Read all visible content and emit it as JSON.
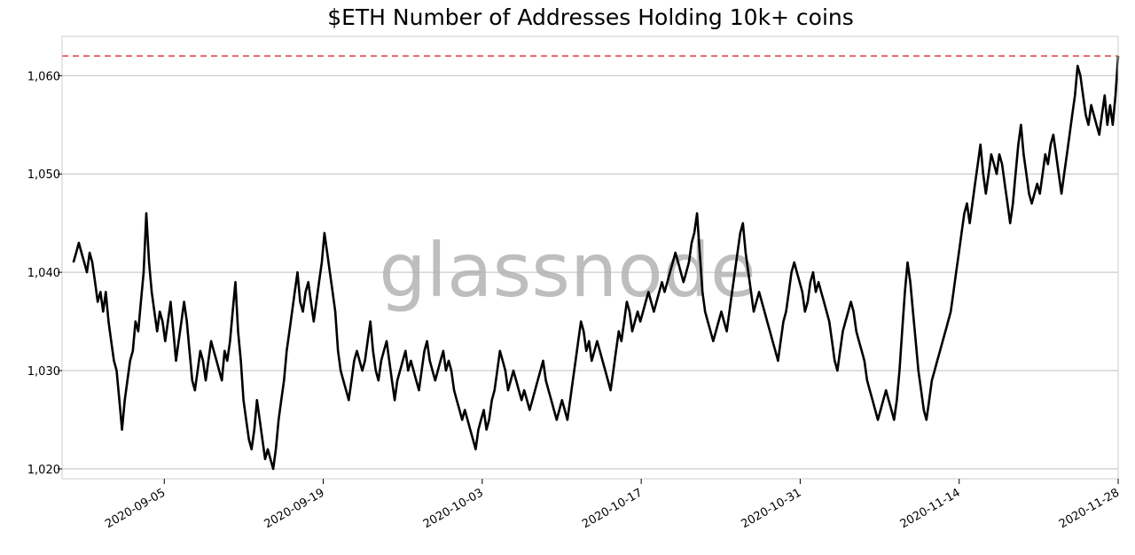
{
  "chart_data": {
    "type": "line",
    "title": "$ETH Number of Addresses Holding 10k+ coins",
    "xlabel": "",
    "ylabel": "",
    "x_start": "2020-08-28",
    "x_end": "2020-11-28",
    "xlim": [
      "2020-08-27",
      "2020-11-28"
    ],
    "ylim": [
      1019,
      1064
    ],
    "x_ticks": [
      "2020-09-05",
      "2020-09-19",
      "2020-10-03",
      "2020-10-17",
      "2020-10-31",
      "2020-11-14",
      "2020-11-28"
    ],
    "y_ticks": [
      1020,
      1030,
      1040,
      1050,
      1060
    ],
    "y_tick_labels": [
      "1,020",
      "1,030",
      "1,040",
      "1,050",
      "1,060"
    ],
    "grid": "horizontal",
    "reference_line": {
      "value": 1062,
      "color": "#e03c3c",
      "style": "dashed"
    },
    "line_color": "#000000",
    "watermark": "glassnode",
    "series": [
      {
        "values": [
          1041,
          1042,
          1043,
          1042,
          1041,
          1040,
          1042,
          1041,
          1039,
          1037,
          1038,
          1036,
          1038,
          1035,
          1033,
          1031,
          1030,
          1027,
          1024,
          1027,
          1029,
          1031,
          1032,
          1035,
          1034,
          1037,
          1040,
          1046,
          1041,
          1038,
          1036,
          1034,
          1036,
          1035,
          1033,
          1035,
          1037,
          1034,
          1031,
          1033,
          1035,
          1037,
          1035,
          1032,
          1029,
          1028,
          1030,
          1032,
          1031,
          1029,
          1031,
          1033,
          1032,
          1031,
          1030,
          1029,
          1032,
          1031,
          1033,
          1036,
          1039,
          1034,
          1031,
          1027,
          1025,
          1023,
          1022,
          1024,
          1027,
          1025,
          1023,
          1021,
          1022,
          1021,
          1020,
          1022,
          1025,
          1027,
          1029,
          1032,
          1034,
          1036,
          1038,
          1040,
          1037,
          1036,
          1038,
          1039,
          1037,
          1035,
          1037,
          1039,
          1041,
          1044,
          1042,
          1040,
          1038,
          1036,
          1032,
          1030,
          1029,
          1028,
          1027,
          1029,
          1031,
          1032,
          1031,
          1030,
          1031,
          1033,
          1035,
          1032,
          1030,
          1029,
          1031,
          1032,
          1033,
          1031,
          1029,
          1027,
          1029,
          1030,
          1031,
          1032,
          1030,
          1031,
          1030,
          1029,
          1028,
          1030,
          1032,
          1033,
          1031,
          1030,
          1029,
          1030,
          1031,
          1032,
          1030,
          1031,
          1030,
          1028,
          1027,
          1026,
          1025,
          1026,
          1025,
          1024,
          1023,
          1022,
          1024,
          1025,
          1026,
          1024,
          1025,
          1027,
          1028,
          1030,
          1032,
          1031,
          1030,
          1028,
          1029,
          1030,
          1029,
          1028,
          1027,
          1028,
          1027,
          1026,
          1027,
          1028,
          1029,
          1030,
          1031,
          1029,
          1028,
          1027,
          1026,
          1025,
          1026,
          1027,
          1026,
          1025,
          1027,
          1029,
          1031,
          1033,
          1035,
          1034,
          1032,
          1033,
          1031,
          1032,
          1033,
          1032,
          1031,
          1030,
          1029,
          1028,
          1030,
          1032,
          1034,
          1033,
          1035,
          1037,
          1036,
          1034,
          1035,
          1036,
          1035,
          1036,
          1037,
          1038,
          1037,
          1036,
          1037,
          1038,
          1039,
          1038,
          1039,
          1040,
          1041,
          1042,
          1041,
          1040,
          1039,
          1040,
          1041,
          1043,
          1044,
          1046,
          1042,
          1038,
          1036,
          1035,
          1034,
          1033,
          1034,
          1035,
          1036,
          1035,
          1034,
          1036,
          1038,
          1040,
          1042,
          1044,
          1045,
          1042,
          1040,
          1038,
          1036,
          1037,
          1038,
          1037,
          1036,
          1035,
          1034,
          1033,
          1032,
          1031,
          1033,
          1035,
          1036,
          1038,
          1040,
          1041,
          1040,
          1039,
          1038,
          1036,
          1037,
          1039,
          1040,
          1038,
          1039,
          1038,
          1037,
          1036,
          1035,
          1033,
          1031,
          1030,
          1032,
          1034,
          1035,
          1036,
          1037,
          1036,
          1034,
          1033,
          1032,
          1031,
          1029,
          1028,
          1027,
          1026,
          1025,
          1026,
          1027,
          1028,
          1027,
          1026,
          1025,
          1027,
          1030,
          1034,
          1038,
          1041,
          1039,
          1036,
          1033,
          1030,
          1028,
          1026,
          1025,
          1027,
          1029,
          1030,
          1031,
          1032,
          1033,
          1034,
          1035,
          1036,
          1038,
          1040,
          1042,
          1044,
          1046,
          1047,
          1045,
          1047,
          1049,
          1051,
          1053,
          1050,
          1048,
          1050,
          1052,
          1051,
          1050,
          1052,
          1051,
          1049,
          1047,
          1045,
          1047,
          1050,
          1053,
          1055,
          1052,
          1050,
          1048,
          1047,
          1048,
          1049,
          1048,
          1050,
          1052,
          1051,
          1053,
          1054,
          1052,
          1050,
          1048,
          1050,
          1052,
          1054,
          1056,
          1058,
          1061,
          1060,
          1058,
          1056,
          1055,
          1057,
          1056,
          1055,
          1054,
          1056,
          1058,
          1055,
          1057,
          1055,
          1058,
          1062
        ]
      }
    ]
  }
}
